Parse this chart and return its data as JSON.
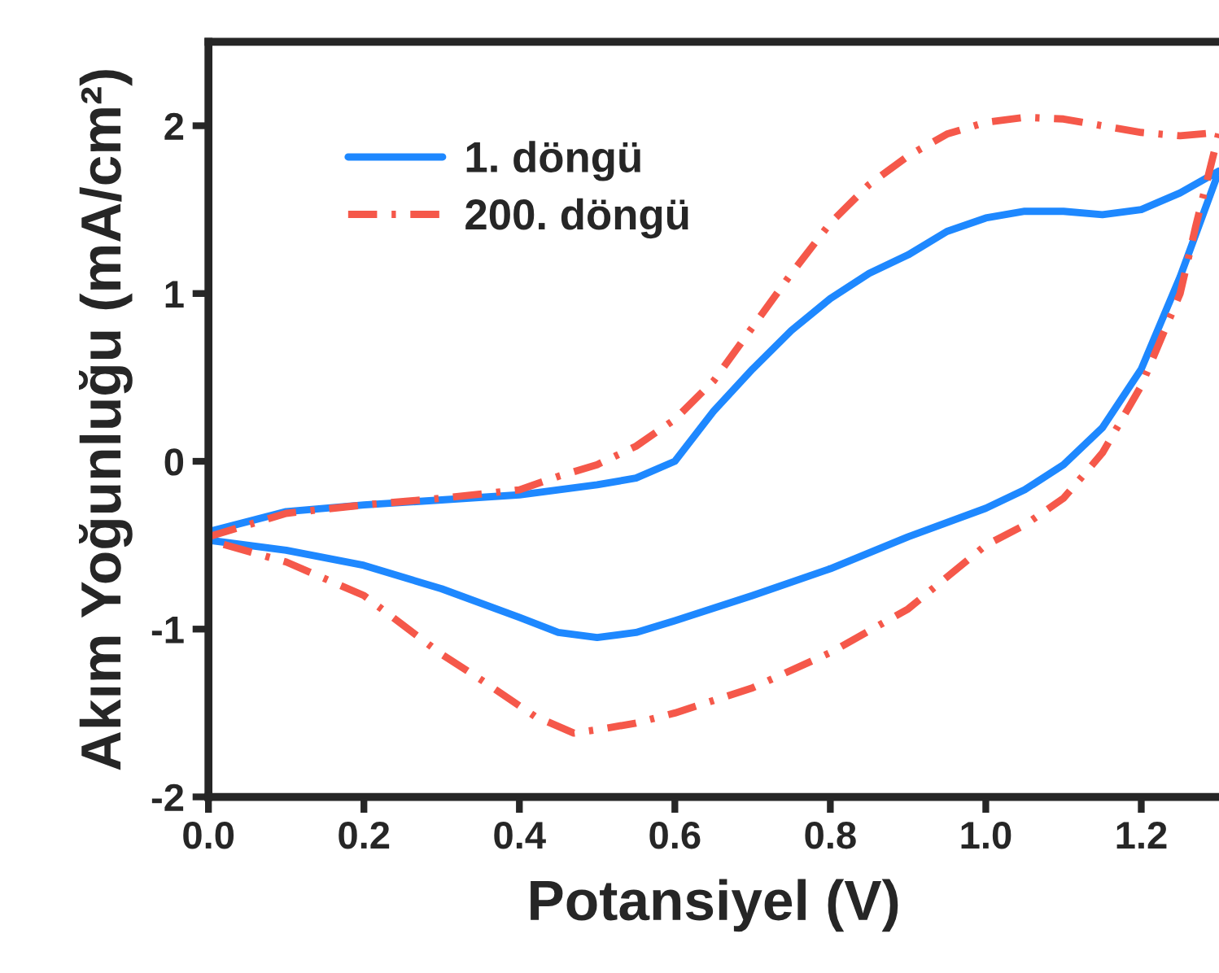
{
  "chart_data": {
    "type": "line",
    "xlabel": "Potansiyel (V)",
    "ylabel": "Akım Yoğunluğu (mA/cm²)",
    "xlim": [
      0,
      1.3
    ],
    "xticks": [
      {
        "value": 0,
        "label": "0.0"
      },
      0.2,
      0.4,
      0.6,
      0.8,
      {
        "value": 1,
        "label": "1.0"
      },
      1.2
    ],
    "ylim": [
      -2,
      2.5
    ],
    "yticks": [
      -2,
      -1,
      0,
      1,
      2
    ],
    "grid": false,
    "legend": "top left",
    "marker": "none",
    "series": [
      {
        "name": "1. döngü",
        "color": "#1e88ff",
        "line_style": "solid",
        "x": [
          0,
          0.1,
          0.2,
          0.3,
          0.4,
          0.5,
          0.55,
          0.6,
          0.65,
          0.7,
          0.75,
          0.8,
          0.85,
          0.9,
          0.95,
          1.0,
          1.05,
          1.1,
          1.15,
          1.2,
          1.25,
          1.3,
          1.25,
          1.2,
          1.15,
          1.1,
          1.05,
          1.0,
          0.9,
          0.8,
          0.7,
          0.6,
          0.55,
          0.5,
          0.45,
          0.4,
          0.3,
          0.2,
          0.1,
          0
        ],
        "values": [
          -0.42,
          -0.3,
          -0.26,
          -0.23,
          -0.2,
          -0.14,
          -0.1,
          0.0,
          0.3,
          0.55,
          0.78,
          0.97,
          1.12,
          1.23,
          1.37,
          1.45,
          1.49,
          1.49,
          1.47,
          1.5,
          1.6,
          1.73,
          1.1,
          0.55,
          0.2,
          -0.02,
          -0.17,
          -0.28,
          -0.45,
          -0.64,
          -0.8,
          -0.95,
          -1.02,
          -1.05,
          -1.02,
          -0.93,
          -0.76,
          -0.62,
          -0.53,
          -0.47
        ]
      },
      {
        "name": "200. döngü",
        "color": "#f5584a",
        "line_style": "dashdot",
        "x": [
          0,
          0.1,
          0.2,
          0.3,
          0.4,
          0.45,
          0.5,
          0.55,
          0.6,
          0.65,
          0.7,
          0.75,
          0.8,
          0.85,
          0.9,
          0.95,
          1.0,
          1.05,
          1.1,
          1.15,
          1.2,
          1.25,
          1.3,
          1.27,
          1.25,
          1.2,
          1.15,
          1.1,
          1.05,
          1.0,
          0.9,
          0.8,
          0.7,
          0.6,
          0.55,
          0.5,
          0.47,
          0.42,
          0.35,
          0.3,
          0.2,
          0.1,
          0
        ],
        "values": [
          -0.45,
          -0.31,
          -0.26,
          -0.22,
          -0.17,
          -0.09,
          -0.02,
          0.09,
          0.25,
          0.48,
          0.8,
          1.12,
          1.42,
          1.65,
          1.82,
          1.95,
          2.02,
          2.05,
          2.04,
          2.0,
          1.96,
          1.94,
          1.96,
          1.4,
          1.0,
          0.45,
          0.05,
          -0.22,
          -0.38,
          -0.5,
          -0.88,
          -1.14,
          -1.35,
          -1.5,
          -1.56,
          -1.6,
          -1.62,
          -1.52,
          -1.3,
          -1.15,
          -0.8,
          -0.6,
          -0.47
        ]
      }
    ]
  }
}
